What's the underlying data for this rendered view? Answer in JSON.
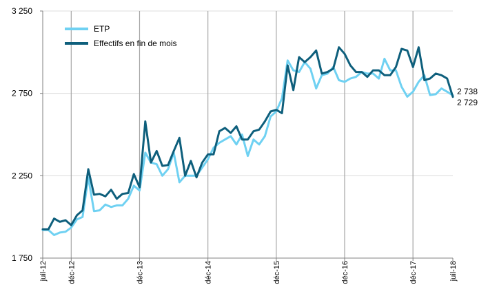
{
  "chart_data": {
    "type": "line",
    "title": "",
    "xlabel": "",
    "ylabel": "",
    "ylim": [
      1750,
      3250
    ],
    "yticks": [
      "1 750",
      "2 250",
      "2 750",
      "3 250"
    ],
    "ytick_values": [
      1750,
      2250,
      2750,
      3250
    ],
    "xtick_labels": [
      "juil-12",
      "déc-12",
      "déc-13",
      "déc-14",
      "déc-15",
      "déc-16",
      "déc-17",
      "juil-18"
    ],
    "xtick_dates": [
      "2012-07",
      "2012-12",
      "2013-12",
      "2014-12",
      "2015-12",
      "2016-12",
      "2017-12",
      "2018-07"
    ],
    "grid": "vertical at december ticks",
    "legend_position": "top-left",
    "x": [
      "2012-07",
      "2012-08",
      "2012-09",
      "2012-10",
      "2012-11",
      "2012-12",
      "2013-01",
      "2013-02",
      "2013-03",
      "2013-04",
      "2013-05",
      "2013-06",
      "2013-07",
      "2013-08",
      "2013-09",
      "2013-10",
      "2013-11",
      "2013-12",
      "2014-01",
      "2014-02",
      "2014-03",
      "2014-04",
      "2014-05",
      "2014-06",
      "2014-07",
      "2014-08",
      "2014-09",
      "2014-10",
      "2014-11",
      "2014-12",
      "2015-01",
      "2015-02",
      "2015-03",
      "2015-04",
      "2015-05",
      "2015-06",
      "2015-07",
      "2015-08",
      "2015-09",
      "2015-10",
      "2015-11",
      "2015-12",
      "2016-01",
      "2016-02",
      "2016-03",
      "2016-04",
      "2016-05",
      "2016-06",
      "2016-07",
      "2016-08",
      "2016-09",
      "2016-10",
      "2016-11",
      "2016-12",
      "2017-01",
      "2017-02",
      "2017-03",
      "2017-04",
      "2017-05",
      "2017-06",
      "2017-07",
      "2017-08",
      "2017-09",
      "2017-10",
      "2017-11",
      "2017-12",
      "2018-01",
      "2018-02",
      "2018-03",
      "2018-04",
      "2018-05",
      "2018-06",
      "2018-07"
    ],
    "series": [
      {
        "name": "ETP",
        "color": "#6fd1f2",
        "values": [
          1920,
          1920,
          1890,
          1905,
          1910,
          1935,
          1985,
          2000,
          2240,
          2035,
          2040,
          2075,
          2060,
          2070,
          2070,
          2110,
          2190,
          2160,
          2390,
          2330,
          2320,
          2250,
          2290,
          2390,
          2210,
          2250,
          2250,
          2250,
          2300,
          2350,
          2420,
          2450,
          2470,
          2490,
          2440,
          2500,
          2370,
          2470,
          2440,
          2490,
          2610,
          2640,
          2720,
          2950,
          2890,
          2880,
          2940,
          2900,
          2780,
          2860,
          2870,
          2910,
          2830,
          2820,
          2840,
          2850,
          2880,
          2870,
          2870,
          2840,
          2960,
          2890,
          2890,
          2790,
          2730,
          2760,
          2820,
          2860,
          2740,
          2745,
          2780,
          2760,
          2738
        ]
      },
      {
        "name": "Effectifs en fin de mois",
        "color": "#0e5f7c",
        "values": [
          1925,
          1925,
          1990,
          1970,
          1980,
          1950,
          2010,
          2040,
          2290,
          2135,
          2140,
          2125,
          2165,
          2110,
          2140,
          2145,
          2260,
          2180,
          2580,
          2330,
          2400,
          2310,
          2315,
          2400,
          2480,
          2250,
          2340,
          2240,
          2330,
          2380,
          2380,
          2520,
          2540,
          2510,
          2550,
          2470,
          2470,
          2520,
          2530,
          2580,
          2640,
          2650,
          2630,
          2920,
          2770,
          2970,
          2940,
          2970,
          3010,
          2870,
          2880,
          2900,
          3030,
          2990,
          2920,
          2880,
          2880,
          2850,
          2890,
          2890,
          2860,
          2860,
          2910,
          3020,
          3010,
          2910,
          3030,
          2830,
          2840,
          2870,
          2860,
          2840,
          2729
        ]
      }
    ],
    "annotations": [
      {
        "text": "2 738",
        "series": "ETP"
      },
      {
        "text": "2 729",
        "series": "Effectifs en fin de mois"
      }
    ]
  }
}
